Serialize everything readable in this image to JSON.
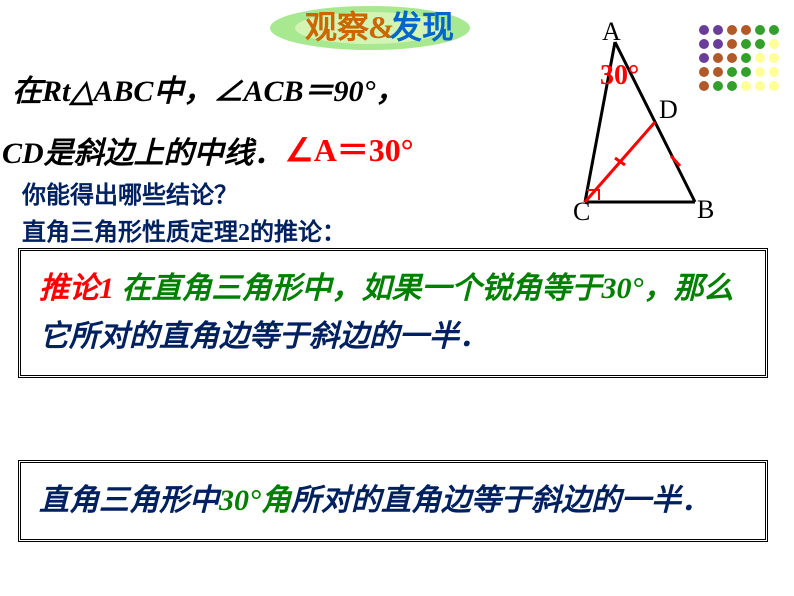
{
  "title": {
    "text1": "观察",
    "text2": "&",
    "text3": "发现",
    "color1": "#cc6600",
    "color2": "#0066cc",
    "bg_color": "#a8e890",
    "inner_bg_color": "#d4f4b4"
  },
  "line1": "在Rt△ABC中，∠ACB＝90°，",
  "line2": "CD是斜边上的中线．",
  "angle_a": "∠A＝30°",
  "q1": "你能得出哪些结论？",
  "q2": "直角三角形性质定理2的推论：",
  "box1": {
    "p1": {
      "text": "推论1",
      "color": "#ff0000"
    },
    "p2": {
      "text": " 在直角三角形中，如果",
      "color": "#008000"
    },
    "p3": {
      "text": "一个锐角等于30°",
      "color": "#008000"
    },
    "p4": {
      "text": "，那么",
      "color": "#008000"
    },
    "p5": {
      "text": "它所对的直角边等于斜边的一半．",
      "color": "#002060"
    }
  },
  "box2": {
    "p1": {
      "text": "直角三角形中",
      "color": "#002060"
    },
    "p2": {
      "text": "30°角",
      "color": "#008000"
    },
    "p3": {
      "text": "所对的直角边等于斜边的一半．",
      "color": "#002060"
    }
  },
  "diagram": {
    "A": "A",
    "B": "B",
    "C": "C",
    "D": "D",
    "angle_label": "30°",
    "angle_color": "#ff0000",
    "line_color": "#000000",
    "median_color": "#ff0000"
  },
  "dots": {
    "rows": 6,
    "cols": 6,
    "colors": [
      "#6a3d9a",
      "#6a3d9a",
      "#b15928",
      "#b15928",
      "#33a02c",
      "#33a02c",
      "#6a3d9a",
      "#6a3d9a",
      "#b15928",
      "#33a02c",
      "#33a02c",
      "#ffff99",
      "#6a3d9a",
      "#b15928",
      "#b15928",
      "#33a02c",
      "#ffff99",
      "#ffff99",
      "#b15928",
      "#b15928",
      "#33a02c",
      "#33a02c",
      "#ffff99",
      "#ffff99",
      "#b15928",
      "#33a02c",
      "#33a02c",
      "#ffff99",
      "#ffff99",
      "#ffff99"
    ]
  }
}
